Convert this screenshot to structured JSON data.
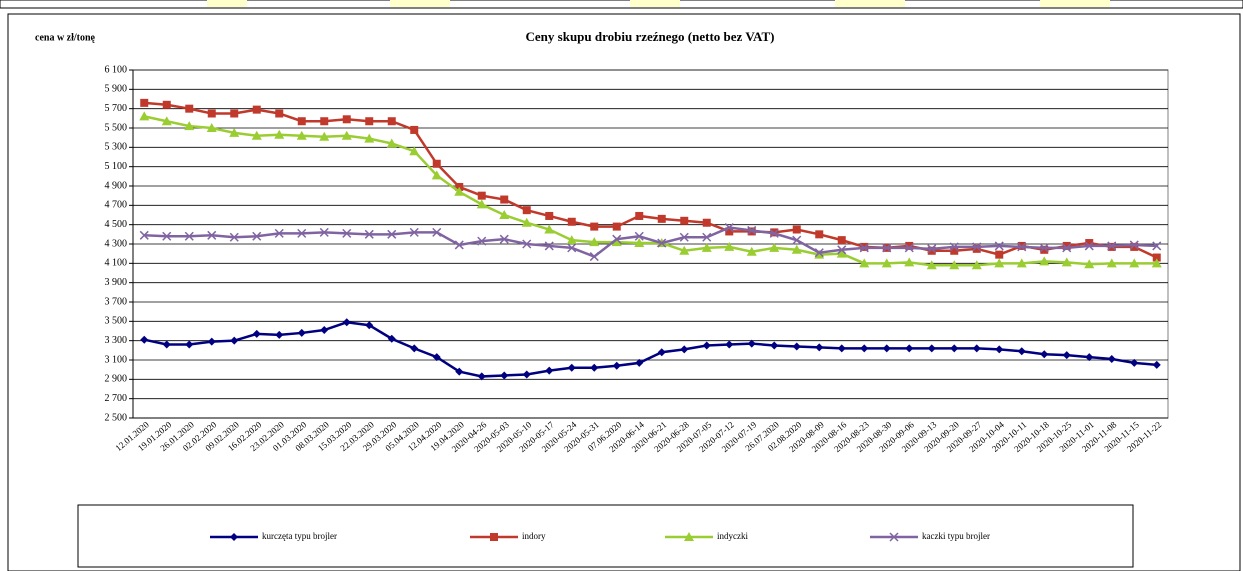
{
  "chart_data": {
    "type": "line",
    "title": "Ceny skupu drobiu rzeźnego (netto bez VAT)",
    "y_label": "cena w zł/tonę",
    "categories": [
      "12.01.2020",
      "19.01.2020",
      "26.01.2020",
      "02.02.2020",
      "09.02.2020",
      "16.02.2020",
      "23.02.2020",
      "01.03.2020",
      "08.03.2020",
      "15.03.2020",
      "22.03.2020",
      "29.03.2020",
      "05.04.2020",
      "12.04.2020",
      "19.04.2020",
      "2020-04-26",
      "2020-05-03",
      "2020-05-10",
      "2020-05-17",
      "2020-05-24",
      "2020-05-31",
      "07.06.2020",
      "2020-06-14",
      "2020-06-21",
      "2020-06-28",
      "2020-07-05",
      "2020-07-12",
      "2020-07-19",
      "26.07.2020",
      "02.08.2020",
      "2020-08-09",
      "2020-08-16",
      "2020-08-23",
      "2020-08-30",
      "2020-09-06",
      "2020-09-13",
      "2020-09-20",
      "2020-09-27",
      "2020-10-04",
      "2020-10-11",
      "2020-10-18",
      "2020-10-25",
      "2020-11-01",
      "2020-11-08",
      "2020-11-15",
      "2020-11-22"
    ],
    "series": [
      {
        "name": "kurczęta typu brojler",
        "color": "#000080",
        "marker": "diamond",
        "values": [
          3310,
          3260,
          3260,
          3290,
          3300,
          3370,
          3360,
          3380,
          3410,
          3490,
          3460,
          3320,
          3220,
          3130,
          2980,
          2930,
          2940,
          2950,
          2990,
          3020,
          3020,
          3040,
          3070,
          3180,
          3210,
          3250,
          3260,
          3270,
          3250,
          3240,
          3230,
          3220,
          3220,
          3220,
          3220,
          3220,
          3220,
          3220,
          3210,
          3190,
          3160,
          3150,
          3130,
          3110,
          3070,
          3050
        ]
      },
      {
        "name": "indory",
        "color": "#c0392b",
        "marker": "square",
        "values": [
          5760,
          5740,
          5700,
          5650,
          5650,
          5690,
          5650,
          5570,
          5570,
          5590,
          5570,
          5570,
          5480,
          5130,
          4890,
          4800,
          4760,
          4650,
          4590,
          4530,
          4480,
          4480,
          4590,
          4560,
          4540,
          4520,
          4430,
          4430,
          4420,
          4450,
          4400,
          4340,
          4270,
          4260,
          4280,
          4230,
          4230,
          4250,
          4190,
          4280,
          4240,
          4280,
          4310,
          4270,
          4270,
          4160
        ]
      },
      {
        "name": "indyczki",
        "color": "#9acd32",
        "marker": "triangle",
        "values": [
          5620,
          5570,
          5520,
          5500,
          5450,
          5420,
          5430,
          5420,
          5410,
          5420,
          5390,
          5340,
          5260,
          5010,
          4840,
          4710,
          4600,
          4520,
          4450,
          4340,
          4320,
          4320,
          4310,
          4310,
          4230,
          4260,
          4270,
          4220,
          4260,
          4240,
          4190,
          4200,
          4100,
          4100,
          4110,
          4080,
          4080,
          4080,
          4100,
          4100,
          4120,
          4110,
          4090,
          4100,
          4100,
          4100
        ]
      },
      {
        "name": "kaczki typu brojler",
        "color": "#8064a2",
        "marker": "cross",
        "values": [
          4390,
          4380,
          4380,
          4390,
          4370,
          4380,
          4410,
          4410,
          4420,
          4410,
          4400,
          4400,
          4420,
          4420,
          4290,
          4330,
          4350,
          4300,
          4280,
          4260,
          4170,
          4350,
          4380,
          4310,
          4370,
          4370,
          4470,
          4440,
          4410,
          4340,
          4210,
          4240,
          4260,
          4260,
          4260,
          4250,
          4270,
          4270,
          4280,
          4270,
          4260,
          4260,
          4280,
          4280,
          4290,
          4280
        ]
      }
    ],
    "ylim": [
      2500,
      6100
    ],
    "yticks": [
      {
        "value": 2500,
        "label": "2 500"
      },
      {
        "value": 2700,
        "label": "2 700"
      },
      {
        "value": 2900,
        "label": "2 900"
      },
      {
        "value": 3100,
        "label": "3 100"
      },
      {
        "value": 3300,
        "label": "3 300"
      },
      {
        "value": 3500,
        "label": "3 500"
      },
      {
        "value": 3700,
        "label": "3 700"
      },
      {
        "value": 3900,
        "label": "3 900"
      },
      {
        "value": 4100,
        "label": "4 100"
      },
      {
        "value": 4300,
        "label": "4 300"
      },
      {
        "value": 4500,
        "label": "4 500"
      },
      {
        "value": 4700,
        "label": "4 700"
      },
      {
        "value": 4900,
        "label": "4 900"
      },
      {
        "value": 5100,
        "label": "5 100"
      },
      {
        "value": 5300,
        "label": "5 300"
      },
      {
        "value": 5500,
        "label": "5 500"
      },
      {
        "value": 5700,
        "label": "5 700"
      },
      {
        "value": 5900,
        "label": "5 900"
      },
      {
        "value": 6100,
        "label": "6 100"
      }
    ],
    "grid": true
  }
}
